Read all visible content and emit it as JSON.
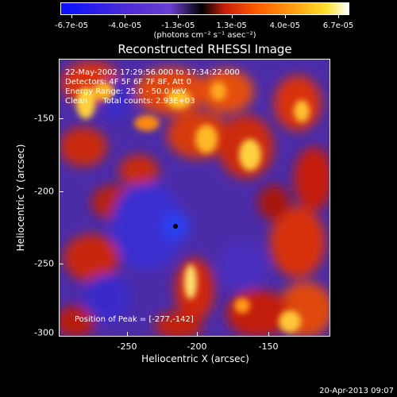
{
  "colorbar": {
    "labels": [
      "-6.7e-05",
      "-4.0e-05",
      "-1.3e-05",
      "1.3e-05",
      "4.0e-05",
      "6.7e-05"
    ],
    "units": "(photons cm⁻² s⁻¹ asec⁻²)"
  },
  "title": "Reconstructed RHESSI Image",
  "annotations": {
    "time": "22-May-2002 17:29:56.000 to 17:34:22.000",
    "detectors": "Detectors: 4F 5F 6F 7F 8F, Att 0",
    "energy": "Energy Range: 25.0 - 50.0 keV",
    "counts": "Clean      Total counts: 2.93E+03",
    "peak": "Position of Peak = [-277,-142]"
  },
  "axes": {
    "xlabel": "Heliocentric X (arcsec)",
    "ylabel": "Heliocentric Y (arcsec)",
    "xticks": [
      "-250",
      "-200",
      "-150"
    ],
    "yticks": [
      "-150",
      "-200",
      "-250",
      "-300"
    ]
  },
  "timestamp": "20-Apr-2013 09:07",
  "colors": {
    "background": "#000000",
    "negative": "#5a2bd0",
    "positive": "#ff6a00",
    "peak": "#ffffff"
  }
}
